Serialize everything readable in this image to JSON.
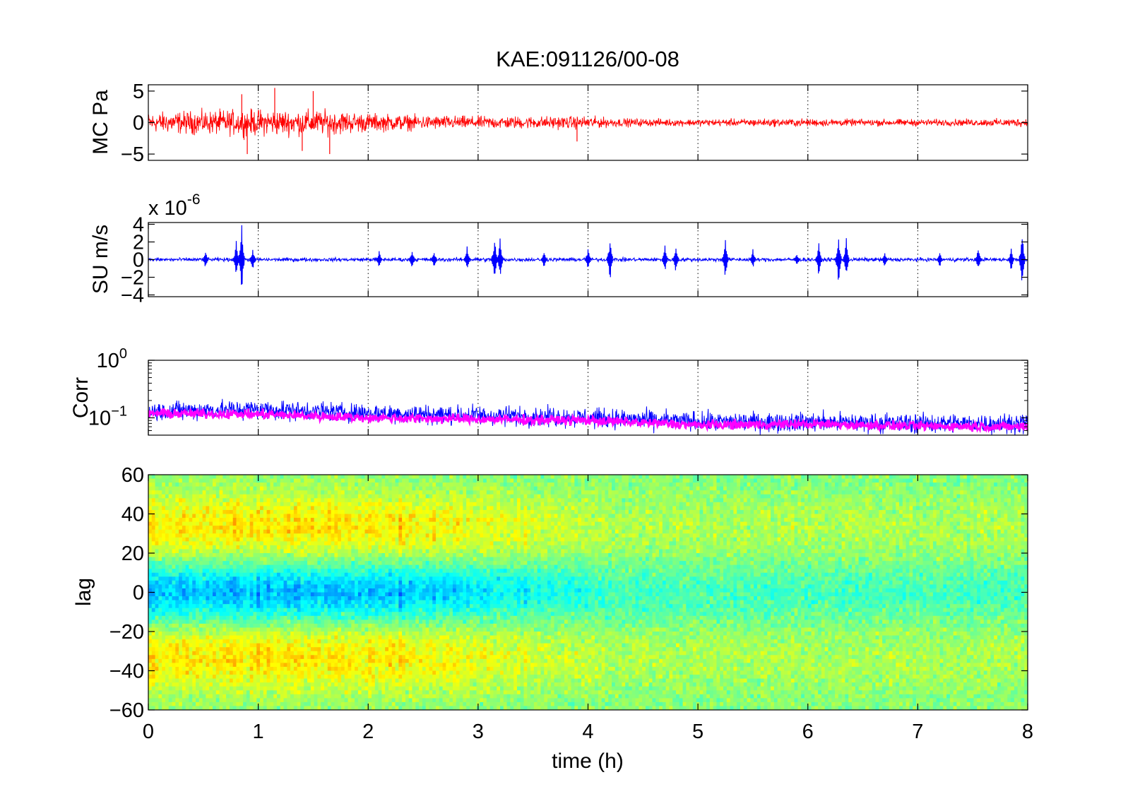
{
  "figure": {
    "title": "KAE:091126/00-08",
    "xlabel": "time (h)",
    "x_ticks": [
      "0",
      "1",
      "2",
      "3",
      "4",
      "5",
      "6",
      "7",
      "8"
    ]
  },
  "colors": {
    "mc": "#ff0000",
    "su": "#0000ff",
    "corr_a": "#0000ff",
    "corr_b": "#ff00ff",
    "axes": "#000000",
    "background": "#ffffff"
  },
  "chart_data": [
    {
      "type": "line",
      "ylabel": "MC Pa",
      "xlim": [
        0,
        8
      ],
      "ylim": [
        -6,
        6
      ],
      "y_ticks": [
        {
          "v": 5,
          "label": "5"
        },
        {
          "v": 0,
          "label": "0"
        },
        {
          "v": -5,
          "label": "-5"
        }
      ],
      "grid": "vertical-dotted",
      "series": [
        {
          "color": "#ff0000",
          "envelope": {
            "x": [
              0,
              0.25,
              0.5,
              0.75,
              1.0,
              1.25,
              1.5,
              1.75,
              2.0,
              2.5,
              3.0,
              3.5,
              4.0,
              4.25,
              4.5,
              5.0,
              5.5,
              6.0,
              6.5,
              7.0,
              7.5,
              8.0
            ],
            "amplitude": [
              2.0,
              2.3,
              2.4,
              2.6,
              2.7,
              2.6,
              2.6,
              2.4,
              1.9,
              1.5,
              1.3,
              1.3,
              1.3,
              0.9,
              0.8,
              0.7,
              0.8,
              0.8,
              0.7,
              0.7,
              0.7,
              0.9
            ]
          },
          "spikes": [
            {
              "x": 0.85,
              "y": 4.5
            },
            {
              "x": 1.15,
              "y": 5.5
            },
            {
              "x": 1.5,
              "y": 5.0
            },
            {
              "x": 0.9,
              "y": -5.0
            },
            {
              "x": 1.4,
              "y": -4.5
            },
            {
              "x": 1.65,
              "y": -5.0
            },
            {
              "x": 3.9,
              "y": -3.0
            }
          ]
        }
      ]
    },
    {
      "type": "line",
      "ylabel": "SU m/s",
      "exponent_label": "x 10",
      "exponent_power": "-6",
      "xlim": [
        0,
        8
      ],
      "ylim": [
        -4.2,
        4.2
      ],
      "y_ticks": [
        {
          "v": 4,
          "label": "4"
        },
        {
          "v": 2,
          "label": "2"
        },
        {
          "v": 0,
          "label": "0"
        },
        {
          "v": -2,
          "label": "-2"
        },
        {
          "v": -4,
          "label": "-4"
        }
      ],
      "grid": "vertical-dotted",
      "series": [
        {
          "color": "#0000ff",
          "baseline_amplitude": 0.3,
          "bursts": [
            {
              "x": 0.52,
              "amp": 1.2
            },
            {
              "x": 0.8,
              "amp": 2.2
            },
            {
              "x": 0.85,
              "amp": 4.2
            },
            {
              "x": 0.95,
              "amp": 1.5
            },
            {
              "x": 2.1,
              "amp": 1.2
            },
            {
              "x": 2.4,
              "amp": 1.3
            },
            {
              "x": 2.6,
              "amp": 1.2
            },
            {
              "x": 2.9,
              "amp": 1.5
            },
            {
              "x": 3.15,
              "amp": 3.0
            },
            {
              "x": 3.2,
              "amp": 2.5
            },
            {
              "x": 3.6,
              "amp": 1.0
            },
            {
              "x": 4.0,
              "amp": 1.5
            },
            {
              "x": 4.2,
              "amp": 2.8
            },
            {
              "x": 4.7,
              "amp": 1.6
            },
            {
              "x": 4.8,
              "amp": 1.8
            },
            {
              "x": 5.25,
              "amp": 2.5
            },
            {
              "x": 5.5,
              "amp": 1.2
            },
            {
              "x": 5.9,
              "amp": 0.8
            },
            {
              "x": 6.1,
              "amp": 2.3
            },
            {
              "x": 6.28,
              "amp": 3.2
            },
            {
              "x": 6.35,
              "amp": 2.6
            },
            {
              "x": 6.7,
              "amp": 1.0
            },
            {
              "x": 7.2,
              "amp": 1.0
            },
            {
              "x": 7.55,
              "amp": 1.6
            },
            {
              "x": 7.85,
              "amp": 1.5
            },
            {
              "x": 7.95,
              "amp": 3.5
            }
          ]
        }
      ]
    },
    {
      "type": "line",
      "ylabel": "Corr",
      "yscale": "log",
      "xlim": [
        0,
        8
      ],
      "ylim": [
        0.05,
        1.0
      ],
      "y_ticks": [
        {
          "v": 1.0,
          "base": "10",
          "power": "0"
        },
        {
          "v": 0.1,
          "base": "10",
          "power": "-1"
        }
      ],
      "grid": "vertical-dotted",
      "series": [
        {
          "color": "#0000ff",
          "level": {
            "x": [
              0,
              1,
              2,
              3,
              4,
              5,
              6,
              7,
              8
            ],
            "y": [
              0.13,
              0.14,
              0.12,
              0.11,
              0.1,
              0.085,
              0.085,
              0.08,
              0.08
            ]
          },
          "spread": 0.55
        },
        {
          "color": "#ff00ff",
          "level": {
            "x": [
              0,
              1,
              2,
              3,
              4,
              5,
              6,
              7,
              8
            ],
            "y": [
              0.12,
              0.115,
              0.1,
              0.095,
              0.09,
              0.075,
              0.078,
              0.072,
              0.07
            ]
          },
          "spread": 0.25
        }
      ]
    },
    {
      "type": "heatmap",
      "ylabel": "lag",
      "xlim": [
        0,
        8
      ],
      "ylim": [
        -60,
        60
      ],
      "y_ticks": [
        {
          "v": 60,
          "label": "60"
        },
        {
          "v": 40,
          "label": "40"
        },
        {
          "v": 20,
          "label": "20"
        },
        {
          "v": 0,
          "label": "0"
        },
        {
          "v": -20,
          "label": "-20"
        },
        {
          "v": -40,
          "label": "-40"
        },
        {
          "v": -60,
          "label": "-60"
        }
      ],
      "colormap": "jet",
      "pattern": {
        "description_ref": "negative correlation near lag 0 (blue) flanked by positive (yellow/red) at |lag| 20-50, strongest for t < 2 h, fading to neutral (green) later",
        "strong_until_h": 2.0,
        "weak_band_until_h": 4.2
      }
    }
  ]
}
